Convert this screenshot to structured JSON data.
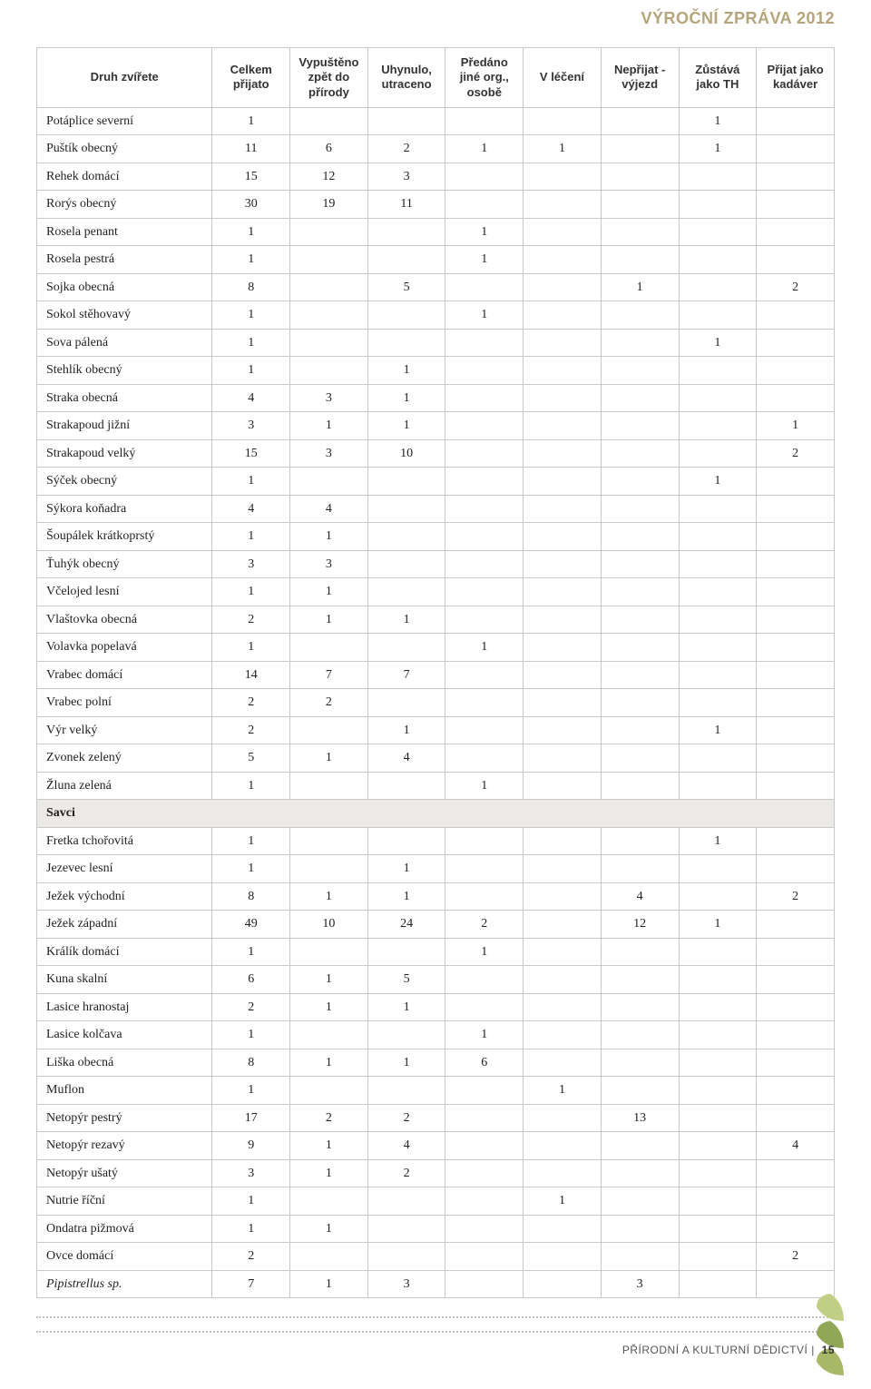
{
  "header": {
    "title": "VÝROČNÍ ZPRÁVA 2012"
  },
  "table": {
    "columns": [
      "Druh zvířete",
      "Celkem přijato",
      "Vypuštěno zpět do přírody",
      "Uhynulo, utraceno",
      "Předáno jiné org., osobě",
      "V léčení",
      "Nepřijat - výjezd",
      "Zůstává jako TH",
      "Přijat jako kadáver"
    ],
    "rows": [
      {
        "name": "Potáplice severní",
        "v": [
          "1",
          "",
          "",
          "",
          "",
          "",
          "1",
          "",
          ""
        ]
      },
      {
        "name": "Puštík obecný",
        "v": [
          "11",
          "6",
          "2",
          "1",
          "1",
          "",
          "1",
          "",
          ""
        ]
      },
      {
        "name": "Rehek domácí",
        "v": [
          "15",
          "12",
          "3",
          "",
          "",
          "",
          "",
          "",
          ""
        ]
      },
      {
        "name": "Rorýs obecný",
        "v": [
          "30",
          "19",
          "11",
          "",
          "",
          "",
          "",
          "",
          ""
        ]
      },
      {
        "name": "Rosela penant",
        "v": [
          "1",
          "",
          "",
          "1",
          "",
          "",
          "",
          "",
          ""
        ]
      },
      {
        "name": "Rosela pestrá",
        "v": [
          "1",
          "",
          "",
          "1",
          "",
          "",
          "",
          "",
          ""
        ]
      },
      {
        "name": "Sojka obecná",
        "v": [
          "8",
          "",
          "5",
          "",
          "",
          "1",
          "",
          "2",
          ""
        ]
      },
      {
        "name": "Sokol stěhovavý",
        "v": [
          "1",
          "",
          "",
          "1",
          "",
          "",
          "",
          "",
          ""
        ]
      },
      {
        "name": "Sova pálená",
        "v": [
          "1",
          "",
          "",
          "",
          "",
          "",
          "1",
          "",
          ""
        ]
      },
      {
        "name": "Stehlík obecný",
        "v": [
          "1",
          "",
          "1",
          "",
          "",
          "",
          "",
          "",
          ""
        ]
      },
      {
        "name": "Straka obecná",
        "v": [
          "4",
          "3",
          "1",
          "",
          "",
          "",
          "",
          "",
          ""
        ]
      },
      {
        "name": "Strakapoud jižní",
        "v": [
          "3",
          "1",
          "1",
          "",
          "",
          "",
          "",
          "",
          "1"
        ]
      },
      {
        "name": "Strakapoud velký",
        "v": [
          "15",
          "3",
          "10",
          "",
          "",
          "",
          "",
          "",
          "2"
        ]
      },
      {
        "name": "Sýček obecný",
        "v": [
          "1",
          "",
          "",
          "",
          "",
          "",
          "1",
          "",
          ""
        ]
      },
      {
        "name": "Sýkora koňadra",
        "v": [
          "4",
          "4",
          "",
          "",
          "",
          "",
          "",
          "",
          ""
        ]
      },
      {
        "name": "Šoupálek krátkoprstý",
        "v": [
          "1",
          "1",
          "",
          "",
          "",
          "",
          "",
          "",
          ""
        ]
      },
      {
        "name": "Ťuhýk obecný",
        "v": [
          "3",
          "3",
          "",
          "",
          "",
          "",
          "",
          "",
          ""
        ]
      },
      {
        "name": "Včelojed lesní",
        "v": [
          "1",
          "1",
          "",
          "",
          "",
          "",
          "",
          "",
          ""
        ]
      },
      {
        "name": "Vlaštovka obecná",
        "v": [
          "2",
          "1",
          "1",
          "",
          "",
          "",
          "",
          "",
          ""
        ]
      },
      {
        "name": "Volavka popelavá",
        "v": [
          "1",
          "",
          "",
          "1",
          "",
          "",
          "",
          "",
          ""
        ]
      },
      {
        "name": "Vrabec domácí",
        "v": [
          "14",
          "7",
          "7",
          "",
          "",
          "",
          "",
          "",
          ""
        ]
      },
      {
        "name": "Vrabec polní",
        "v": [
          "2",
          "2",
          "",
          "",
          "",
          "",
          "",
          "",
          ""
        ]
      },
      {
        "name": "Výr velký",
        "v": [
          "2",
          "",
          "1",
          "",
          "",
          "",
          "1",
          "",
          ""
        ]
      },
      {
        "name": "Zvonek zelený",
        "v": [
          "5",
          "1",
          "4",
          "",
          "",
          "",
          "",
          "",
          ""
        ]
      },
      {
        "name": "Žluna zelená",
        "v": [
          "1",
          "",
          "",
          "1",
          "",
          "",
          "",
          "",
          ""
        ]
      },
      {
        "section": true,
        "name": "Savci"
      },
      {
        "name": "Fretka tchořovitá",
        "v": [
          "1",
          "",
          "",
          "",
          "",
          "",
          "1",
          "",
          ""
        ]
      },
      {
        "name": "Jezevec lesní",
        "v": [
          "1",
          "",
          "1",
          "",
          "",
          "",
          "",
          "",
          ""
        ]
      },
      {
        "name": "Ježek východní",
        "v": [
          "8",
          "1",
          "1",
          "",
          "",
          "4",
          "",
          "",
          "2"
        ]
      },
      {
        "name": "Ježek západní",
        "v": [
          "49",
          "10",
          "24",
          "2",
          "",
          "12",
          "1",
          "",
          ""
        ]
      },
      {
        "name": "Králík domácí",
        "v": [
          "1",
          "",
          "",
          "1",
          "",
          "",
          "",
          "",
          ""
        ]
      },
      {
        "name": "Kuna skalní",
        "v": [
          "6",
          "1",
          "5",
          "",
          "",
          "",
          "",
          "",
          ""
        ]
      },
      {
        "name": "Lasice hranostaj",
        "v": [
          "2",
          "1",
          "1",
          "",
          "",
          "",
          "",
          "",
          ""
        ]
      },
      {
        "name": "Lasice kolčava",
        "v": [
          "1",
          "",
          "",
          "1",
          "",
          "",
          "",
          "",
          ""
        ]
      },
      {
        "name": "Liška obecná",
        "v": [
          "8",
          "1",
          "1",
          "6",
          "",
          "",
          "",
          "",
          ""
        ]
      },
      {
        "name": "Muflon",
        "v": [
          "1",
          "",
          "",
          "",
          "1",
          "",
          "",
          "",
          ""
        ]
      },
      {
        "name": "Netopýr pestrý",
        "v": [
          "17",
          "2",
          "2",
          "",
          "",
          "13",
          "",
          "",
          ""
        ]
      },
      {
        "name": "Netopýr rezavý",
        "v": [
          "9",
          "1",
          "4",
          "",
          "",
          "",
          "",
          "",
          "4"
        ]
      },
      {
        "name": "Netopýr ušatý",
        "v": [
          "3",
          "1",
          "2",
          "",
          "",
          "",
          "",
          "",
          ""
        ]
      },
      {
        "name": "Nutrie říční",
        "v": [
          "1",
          "",
          "",
          "",
          "1",
          "",
          "",
          "",
          ""
        ]
      },
      {
        "name": "Ondatra pižmová",
        "v": [
          "1",
          "1",
          "",
          "",
          "",
          "",
          "",
          "",
          ""
        ]
      },
      {
        "name": "Ovce domácí",
        "v": [
          "2",
          "",
          "",
          "",
          "",
          "",
          "",
          "2",
          ""
        ]
      },
      {
        "name": "Pipistrellus sp.",
        "italic": true,
        "v": [
          "7",
          "1",
          "3",
          "",
          "",
          "3",
          "",
          "",
          ""
        ]
      }
    ]
  },
  "footer": {
    "text": "PŘÍRODNÍ A KULTURNÍ DĚDICTVÍ",
    "page": "15"
  },
  "styling": {
    "header_color": "#b6a57a",
    "border_color": "#c9c9c9",
    "section_bg": "#eceae6",
    "dot_color": "#c0c0c0",
    "body_font": "Times New Roman",
    "header_font": "Arial",
    "leaf_colors": [
      "#8fa756",
      "#c1cf86",
      "#a8b867"
    ]
  }
}
